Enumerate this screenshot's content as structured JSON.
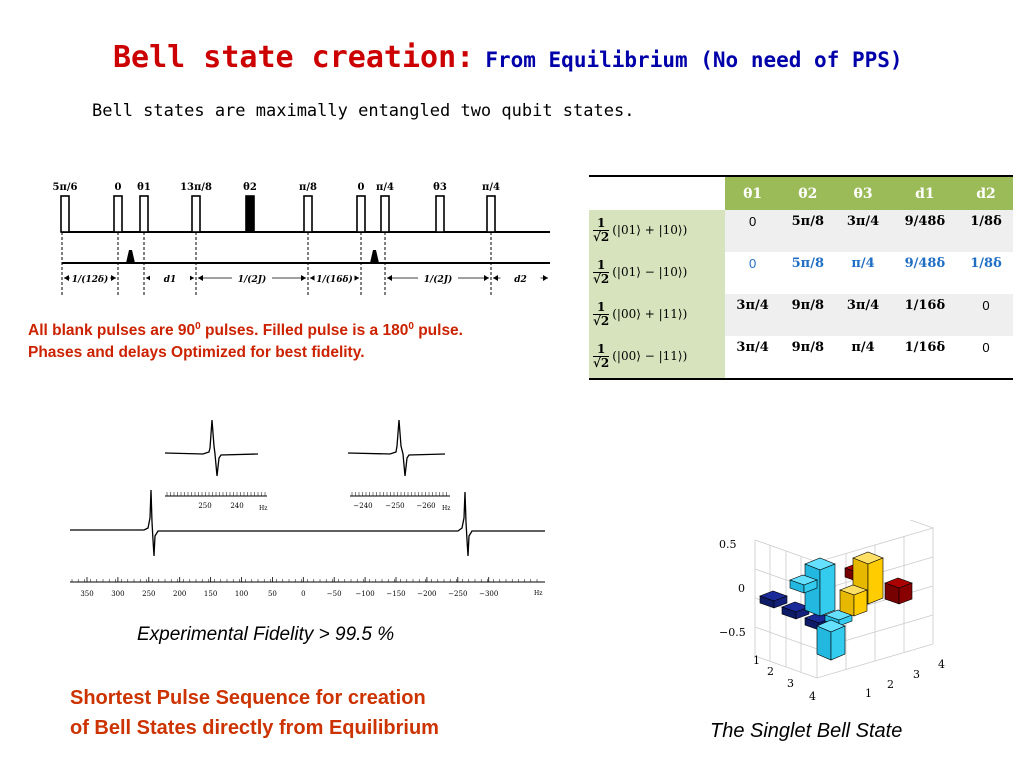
{
  "title": {
    "main": "Bell state creation:",
    "sub": "From Equilibrium (No need of PPS)"
  },
  "subtitle": "Bell states are maximally entangled two  qubit states.",
  "pulse_sequence": {
    "pulse_labels": [
      "5π/6",
      "0",
      "θ1",
      "13π/8",
      "θ2",
      "π/8",
      "0",
      "π/4",
      "θ3",
      "π/4"
    ],
    "delay_labels": [
      "1/(12δ)",
      "d1",
      "1/(2J)",
      "1/(16δ)",
      "1/(2J)",
      "d2"
    ]
  },
  "note": {
    "line1_a": "All blank pulses are 90",
    "line1_sup1": "0",
    "line1_b": " pulses. Filled pulse is a 180",
    "line1_sup2": "0",
    "line1_c": " pulse.",
    "line2": "Phases and delays Optimized for best fidelity."
  },
  "table": {
    "headers": [
      "θ1",
      "θ2",
      "θ3",
      "d1",
      "d2"
    ],
    "rows": [
      {
        "state_num": "1",
        "state_den": "√2",
        "state_ket": "(|01⟩ + |10⟩)",
        "values": [
          "0",
          "5π/8",
          "3π/4",
          "9/48δ",
          "1/8δ"
        ]
      },
      {
        "state_num": "1",
        "state_den": "√2",
        "state_ket": "(|01⟩ − |10⟩)",
        "values": [
          "0",
          "5π/8",
          "π/4",
          "9/48δ",
          "1/8δ"
        ]
      },
      {
        "state_num": "1",
        "state_den": "√2",
        "state_ket": "(|00⟩ + |11⟩)",
        "values": [
          "3π/4",
          "9π/8",
          "3π/4",
          "1/16δ",
          "0"
        ]
      },
      {
        "state_num": "1",
        "state_den": "√2",
        "state_ket": "(|00⟩ − |11⟩)",
        "values": [
          "3π/4",
          "9π/8",
          "π/4",
          "1/16δ",
          "0"
        ]
      }
    ]
  },
  "spectrum": {
    "x_ticks": [
      "350",
      "300",
      "250",
      "200",
      "150",
      "100",
      "50",
      "0",
      "−50",
      "−100",
      "−150",
      "−200",
      "−250",
      "−300"
    ],
    "x_unit": "Hz",
    "inset_left_ticks": [
      "250",
      "240"
    ],
    "inset_right_ticks": [
      "−240",
      "−250",
      "−260"
    ]
  },
  "fidelity": "Experimental Fidelity > 99.5 %",
  "shortest": {
    "line1": "Shortest Pulse Sequence for creation",
    "line2": "of Bell States directly from Equilibrium"
  },
  "density_matrix": {
    "z_ticks": [
      "0.5",
      "0",
      "−0.5"
    ],
    "row_ticks": [
      "1",
      "2",
      "3",
      "4"
    ],
    "col_ticks": [
      "1",
      "2",
      "3",
      "4"
    ],
    "colors": {
      "cyan": "#33ccee",
      "yellow": "#ffcc00",
      "navy": "#1a2a99",
      "darkred": "#990000"
    }
  },
  "singlet_caption": "The Singlet Bell State"
}
